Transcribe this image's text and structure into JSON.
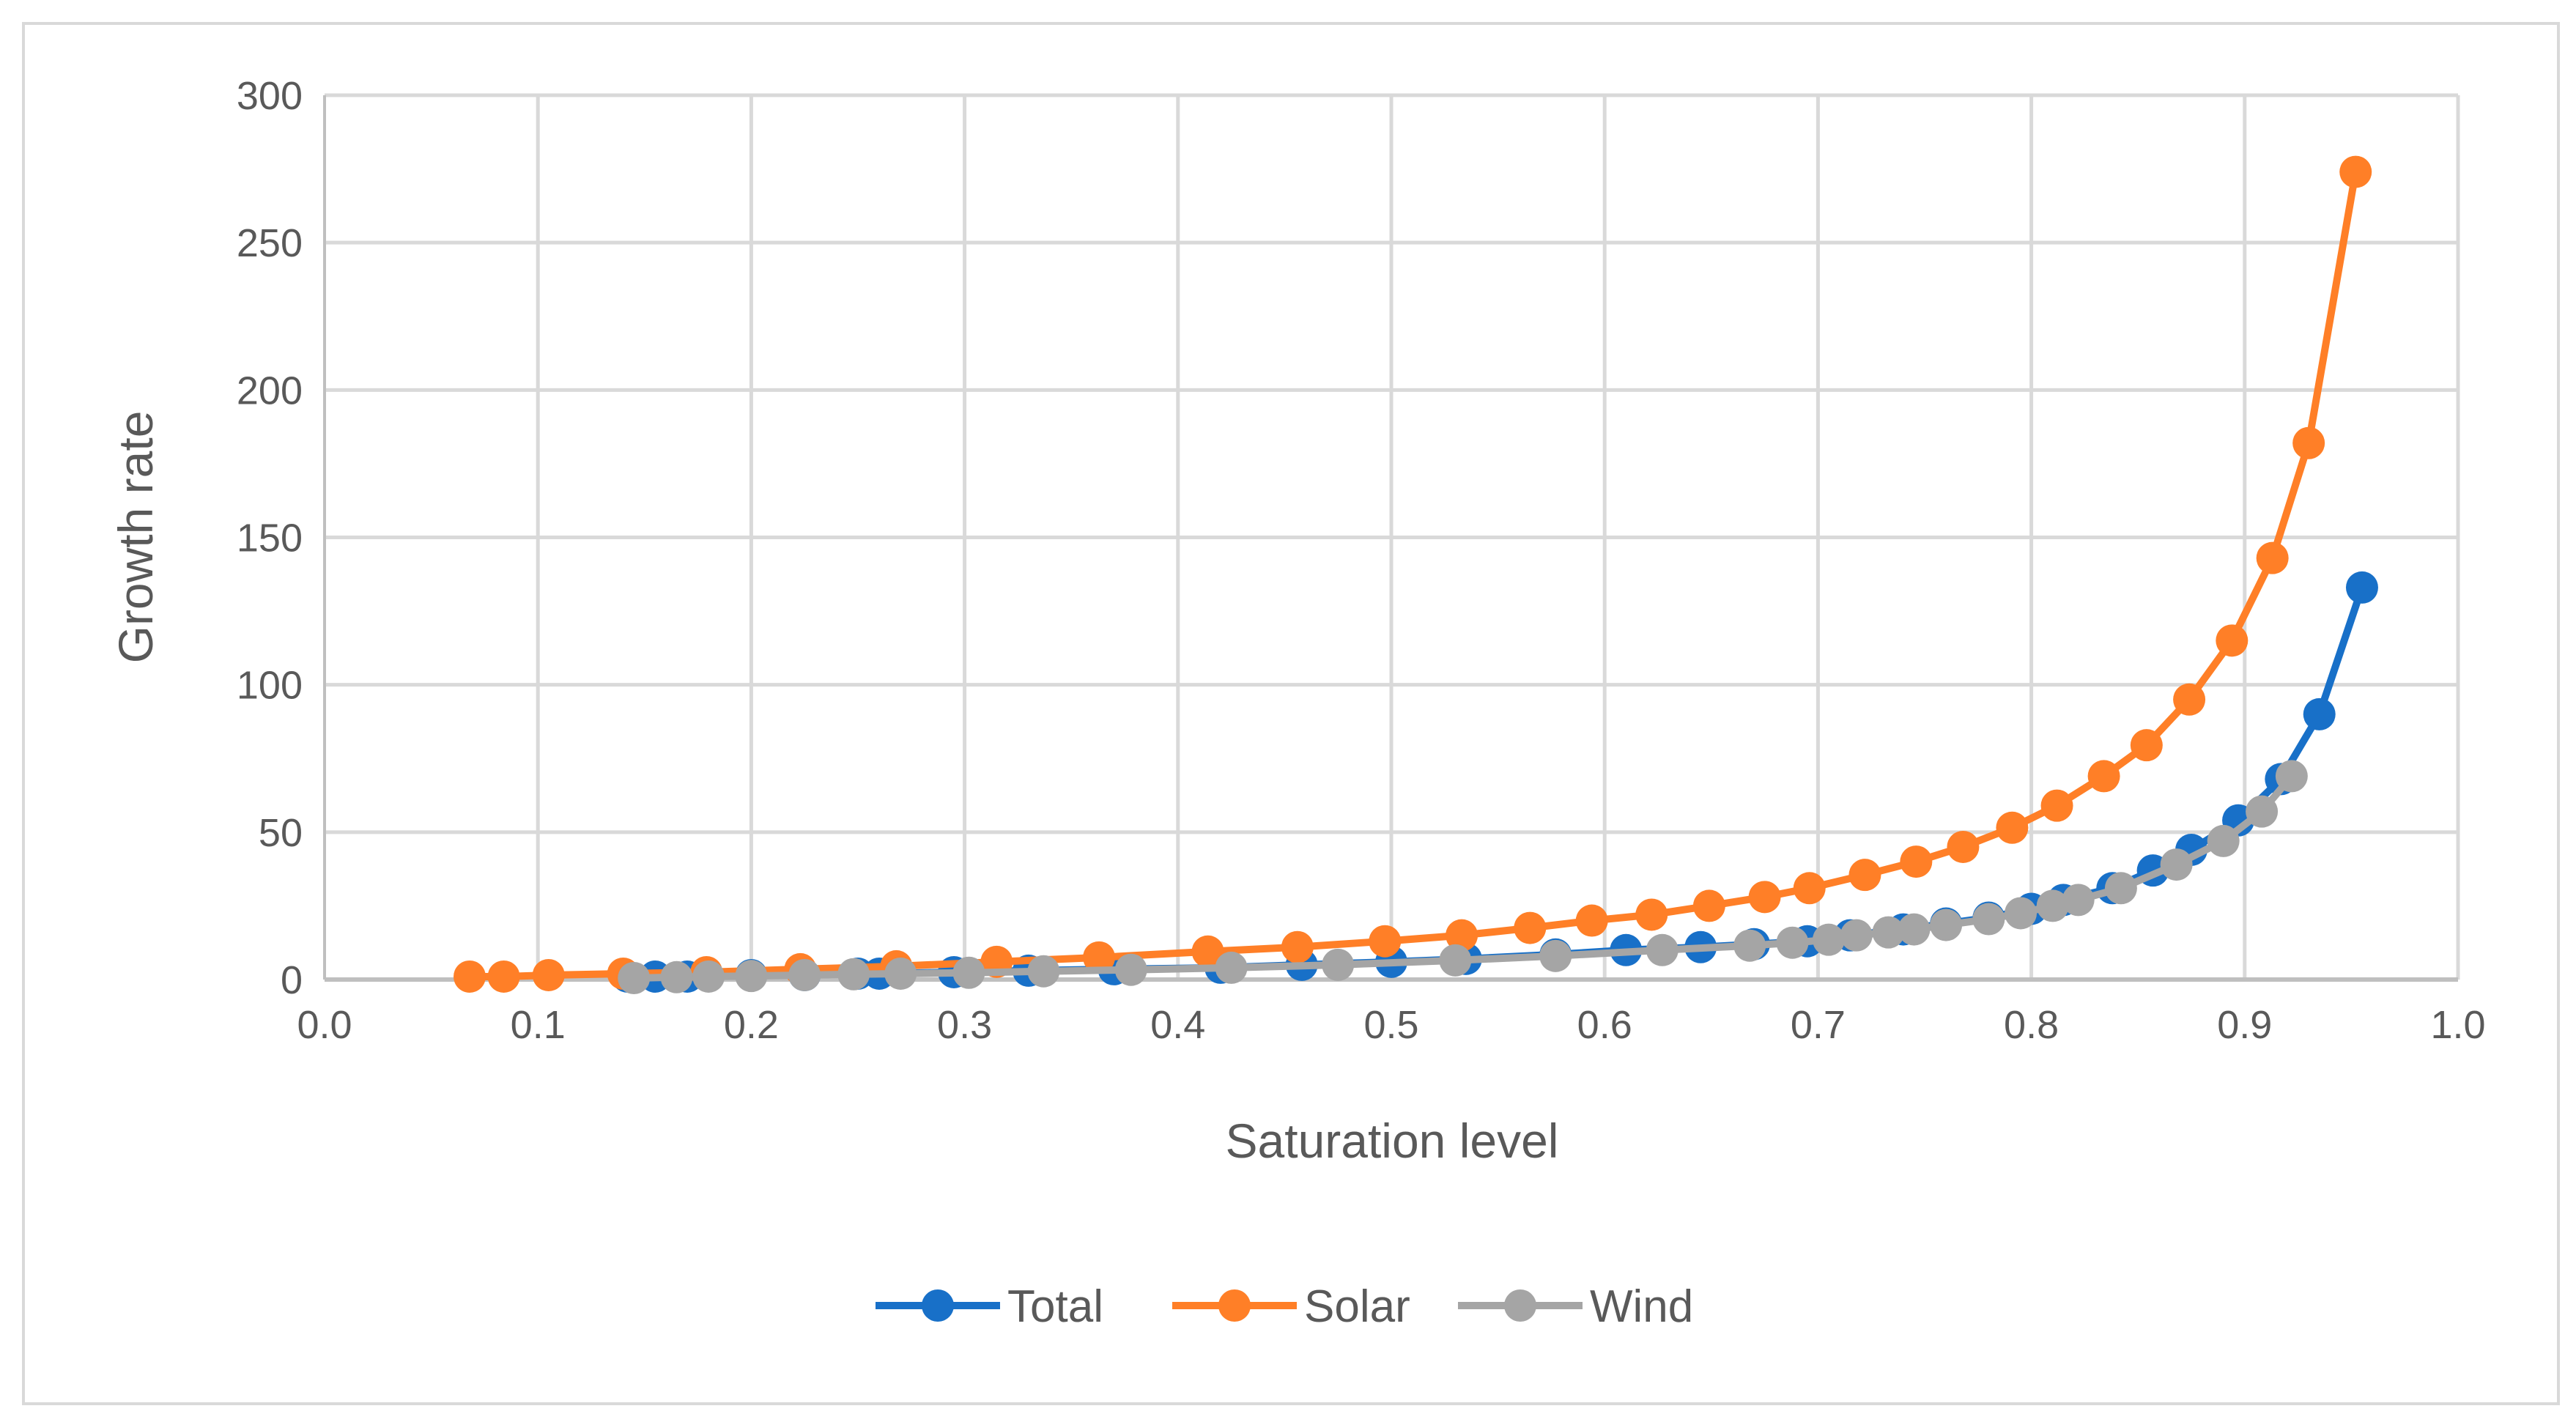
{
  "chart_data": {
    "type": "line",
    "title": "",
    "xlabel": "Saturation level",
    "ylabel": "Growth rate",
    "xlim": [
      0.0,
      1.0
    ],
    "ylim": [
      0,
      300
    ],
    "xticks": [
      "0.0",
      "0.1",
      "0.2",
      "0.3",
      "0.4",
      "0.5",
      "0.6",
      "0.7",
      "0.8",
      "0.9",
      "1.0"
    ],
    "yticks": [
      "0",
      "50",
      "100",
      "150",
      "200",
      "250",
      "300"
    ],
    "grid": true,
    "legend_position": "bottom",
    "markers": true,
    "series": [
      {
        "name": "Total",
        "color": "#1870C8",
        "x": [
          0.142,
          0.155,
          0.17,
          0.2,
          0.225,
          0.25,
          0.26,
          0.295,
          0.33,
          0.37,
          0.42,
          0.458,
          0.5,
          0.535,
          0.577,
          0.61,
          0.645,
          0.67,
          0.695,
          0.715,
          0.74,
          0.76,
          0.78,
          0.8,
          0.815,
          0.838,
          0.857,
          0.875,
          0.897,
          0.917,
          0.935,
          0.955
        ],
        "y": [
          1,
          1,
          1,
          1.5,
          1.5,
          2,
          2,
          2.5,
          3,
          3.5,
          4,
          5,
          6,
          7,
          8.5,
          10,
          11,
          12,
          13,
          15,
          17,
          19,
          21,
          24,
          27,
          31,
          37,
          44,
          54,
          68,
          90,
          133
        ]
      },
      {
        "name": "Solar",
        "color": "#FF7F27",
        "x": [
          0.068,
          0.084,
          0.105,
          0.14,
          0.179,
          0.223,
          0.268,
          0.315,
          0.363,
          0.414,
          0.456,
          0.497,
          0.533,
          0.565,
          0.594,
          0.622,
          0.649,
          0.675,
          0.696,
          0.722,
          0.746,
          0.768,
          0.791,
          0.812,
          0.834,
          0.854,
          0.874,
          0.894,
          0.913,
          0.93,
          0.952
        ],
        "y": [
          1,
          1,
          1.5,
          2,
          2.5,
          3.5,
          4.5,
          6,
          7.5,
          9.5,
          11,
          13,
          15,
          17.5,
          20,
          22,
          25,
          28,
          31,
          35.5,
          40,
          45,
          51.5,
          59,
          69,
          79.5,
          95,
          115,
          143,
          182,
          274
        ]
      },
      {
        "name": "Wind",
        "color": "#A5A5A5",
        "x": [
          0.145,
          0.165,
          0.18,
          0.2,
          0.225,
          0.248,
          0.27,
          0.302,
          0.337,
          0.378,
          0.425,
          0.475,
          0.53,
          0.577,
          0.627,
          0.668,
          0.688,
          0.705,
          0.718,
          0.733,
          0.745,
          0.76,
          0.78,
          0.795,
          0.81,
          0.822,
          0.842,
          0.868,
          0.89,
          0.908,
          0.922
        ],
        "y": [
          0.5,
          0.8,
          1,
          1.2,
          1.5,
          1.8,
          2,
          2.3,
          2.8,
          3.3,
          4,
          5,
          6.5,
          8,
          10,
          11.5,
          12.5,
          13.5,
          15,
          16,
          17,
          18.5,
          20.5,
          22.5,
          25,
          27,
          31,
          39,
          47,
          57,
          69
        ]
      }
    ]
  }
}
